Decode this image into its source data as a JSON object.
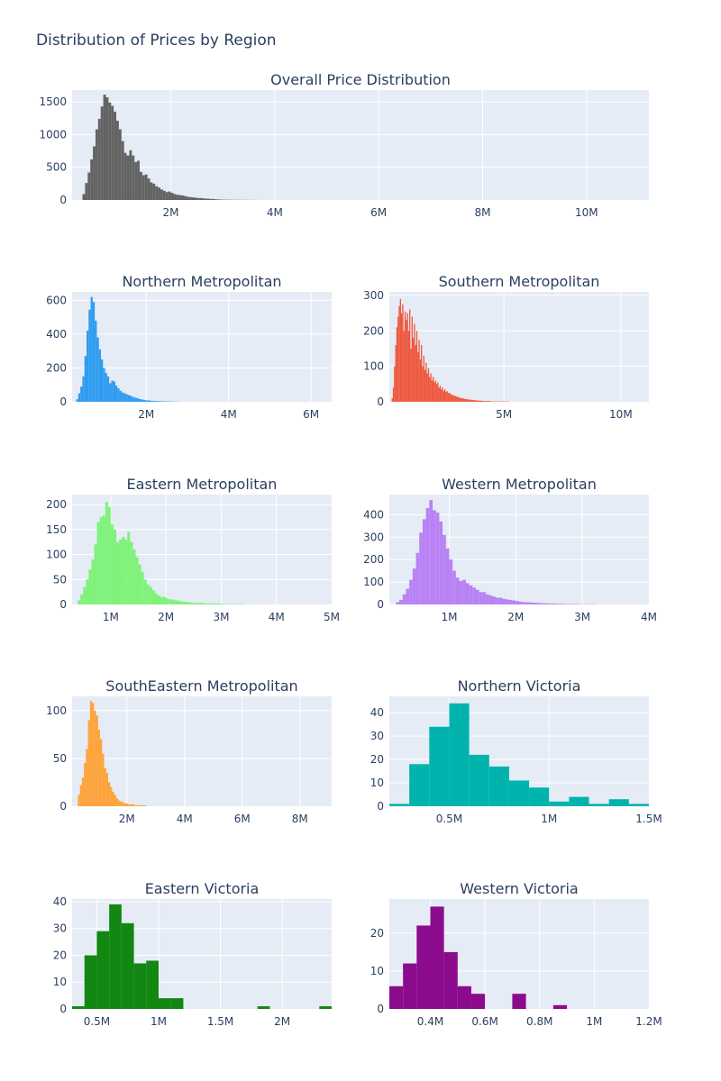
{
  "title": "Distribution of Prices by Region",
  "chart_data": [
    {
      "type": "histogram",
      "title": "Overall Price Distribution",
      "color": "#636363",
      "xlim": [
        0.1,
        11.2
      ],
      "ylim": [
        0,
        1680
      ],
      "x_ticks": [
        {
          "v": 2,
          "label": "2M"
        },
        {
          "v": 4,
          "label": "4M"
        },
        {
          "v": 6,
          "label": "6M"
        },
        {
          "v": 8,
          "label": "8M"
        },
        {
          "v": 10,
          "label": "10M"
        }
      ],
      "y_ticks": [
        {
          "v": 0,
          "label": "0"
        },
        {
          "v": 500,
          "label": "500"
        },
        {
          "v": 1000,
          "label": "1000"
        },
        {
          "v": 1500,
          "label": "1500"
        }
      ],
      "bin_start": 0.3,
      "bin_width": 0.05,
      "counts": [
        90,
        260,
        420,
        620,
        820,
        1080,
        1240,
        1430,
        1610,
        1570,
        1490,
        1440,
        1350,
        1210,
        1080,
        900,
        720,
        680,
        760,
        680,
        580,
        600,
        430,
        380,
        390,
        330,
        270,
        250,
        210,
        190,
        160,
        140,
        120,
        130,
        110,
        90,
        80,
        75,
        70,
        60,
        50,
        45,
        40,
        35,
        30,
        30,
        25,
        22,
        20,
        15,
        15,
        10,
        8,
        6,
        5,
        4,
        4,
        3,
        3,
        2,
        2,
        2,
        2,
        1,
        1,
        1,
        1,
        1
      ]
    },
    {
      "type": "histogram",
      "title": "Northern Metropolitan",
      "color": "#2e9cf0",
      "xlim": [
        0.2,
        6.5
      ],
      "ylim": [
        0,
        650
      ],
      "x_ticks": [
        {
          "v": 2,
          "label": "2M"
        },
        {
          "v": 4,
          "label": "4M"
        },
        {
          "v": 6,
          "label": "6M"
        }
      ],
      "y_ticks": [
        {
          "v": 0,
          "label": "0"
        },
        {
          "v": 200,
          "label": "200"
        },
        {
          "v": 400,
          "label": "400"
        },
        {
          "v": 600,
          "label": "600"
        }
      ],
      "bin_start": 0.3,
      "bin_width": 0.05,
      "counts": [
        15,
        50,
        90,
        150,
        270,
        420,
        545,
        620,
        590,
        480,
        380,
        310,
        250,
        200,
        170,
        150,
        110,
        125,
        120,
        95,
        80,
        65,
        55,
        50,
        45,
        40,
        35,
        30,
        25,
        22,
        18,
        15,
        12,
        10,
        8,
        8,
        6,
        5,
        5,
        4,
        3,
        3,
        3,
        2,
        2,
        2,
        2,
        1,
        1,
        1
      ]
    },
    {
      "type": "histogram",
      "title": "Southern Metropolitan",
      "color": "#ef553b",
      "xlim": [
        0.1,
        11.2
      ],
      "ylim": [
        0,
        310
      ],
      "x_ticks": [
        {
          "v": 5,
          "label": "5M"
        },
        {
          "v": 10,
          "label": "10M"
        }
      ],
      "y_ticks": [
        {
          "v": 0,
          "label": "0"
        },
        {
          "v": 100,
          "label": "100"
        },
        {
          "v": 200,
          "label": "200"
        },
        {
          "v": 300,
          "label": "300"
        }
      ],
      "bin_start": 0.2,
      "bin_width": 0.05,
      "counts": [
        10,
        40,
        100,
        160,
        210,
        240,
        270,
        290,
        250,
        275,
        200,
        255,
        230,
        250,
        200,
        260,
        150,
        240,
        180,
        220,
        160,
        200,
        140,
        175,
        120,
        160,
        100,
        130,
        90,
        110,
        80,
        95,
        70,
        80,
        60,
        70,
        55,
        60,
        50,
        55,
        40,
        45,
        35,
        40,
        30,
        35,
        28,
        30,
        25,
        25,
        22,
        20,
        18,
        18,
        16,
        15,
        14,
        12,
        12,
        10,
        10,
        9,
        8,
        8,
        7,
        7,
        6,
        6,
        5,
        5,
        5,
        4,
        4,
        4,
        3,
        3,
        3,
        3,
        2,
        2,
        2,
        2,
        2,
        2,
        2,
        1,
        1,
        1,
        1,
        1,
        1,
        1,
        1,
        1,
        1,
        1,
        1,
        1,
        1,
        1
      ]
    },
    {
      "type": "histogram",
      "title": "Eastern Metropolitan",
      "color": "#7ff27a",
      "xlim": [
        0.3,
        5.0
      ],
      "ylim": [
        0,
        220
      ],
      "x_ticks": [
        {
          "v": 1,
          "label": "1M"
        },
        {
          "v": 2,
          "label": "2M"
        },
        {
          "v": 3,
          "label": "3M"
        },
        {
          "v": 4,
          "label": "4M"
        },
        {
          "v": 5,
          "label": "5M"
        }
      ],
      "y_ticks": [
        {
          "v": 0,
          "label": "0"
        },
        {
          "v": 50,
          "label": "50"
        },
        {
          "v": 100,
          "label": "100"
        },
        {
          "v": 150,
          "label": "150"
        },
        {
          "v": 200,
          "label": "200"
        }
      ],
      "bin_start": 0.4,
      "bin_width": 0.05,
      "counts": [
        8,
        20,
        35,
        50,
        70,
        90,
        120,
        165,
        175,
        178,
        205,
        195,
        160,
        150,
        125,
        130,
        135,
        130,
        145,
        125,
        110,
        95,
        80,
        65,
        50,
        40,
        35,
        28,
        22,
        18,
        15,
        15,
        12,
        10,
        10,
        8,
        8,
        6,
        5,
        5,
        4,
        4,
        3,
        3,
        3,
        3,
        2,
        2,
        2,
        2,
        2,
        2,
        1,
        1,
        1,
        1,
        1,
        1,
        1,
        1
      ]
    },
    {
      "type": "histogram",
      "title": "Western Metropolitan",
      "color": "#b982f4",
      "xlim": [
        0.1,
        4.0
      ],
      "ylim": [
        0,
        490
      ],
      "x_ticks": [
        {
          "v": 1,
          "label": "1M"
        },
        {
          "v": 2,
          "label": "2M"
        },
        {
          "v": 3,
          "label": "3M"
        },
        {
          "v": 4,
          "label": "4M"
        }
      ],
      "y_ticks": [
        {
          "v": 0,
          "label": "0"
        },
        {
          "v": 100,
          "label": "100"
        },
        {
          "v": 200,
          "label": "200"
        },
        {
          "v": 300,
          "label": "300"
        },
        {
          "v": 400,
          "label": "400"
        }
      ],
      "bin_start": 0.2,
      "bin_width": 0.05,
      "counts": [
        10,
        20,
        45,
        70,
        110,
        160,
        230,
        320,
        380,
        430,
        465,
        420,
        410,
        370,
        310,
        250,
        200,
        150,
        120,
        105,
        110,
        95,
        85,
        75,
        65,
        55,
        55,
        45,
        40,
        35,
        30,
        30,
        25,
        22,
        20,
        18,
        15,
        12,
        10,
        10,
        9,
        8,
        7,
        6,
        5,
        5,
        4,
        4,
        3,
        3,
        3,
        2,
        2,
        2,
        2,
        1,
        1,
        1,
        1,
        1
      ]
    },
    {
      "type": "histogram",
      "title": "SouthEastern Metropolitan",
      "color": "#fea33a",
      "xlim": [
        0.1,
        9.1
      ],
      "ylim": [
        0,
        115
      ],
      "x_ticks": [
        {
          "v": 2,
          "label": "2M"
        },
        {
          "v": 4,
          "label": "4M"
        },
        {
          "v": 6,
          "label": "6M"
        },
        {
          "v": 8,
          "label": "8M"
        }
      ],
      "y_ticks": [
        {
          "v": 0,
          "label": "0"
        },
        {
          "v": 50,
          "label": "50"
        },
        {
          "v": 100,
          "label": "100"
        }
      ],
      "bin_start": 0.3,
      "bin_width": 0.07,
      "counts": [
        12,
        22,
        30,
        45,
        60,
        90,
        110,
        108,
        100,
        95,
        80,
        70,
        55,
        40,
        35,
        25,
        20,
        15,
        12,
        8,
        6,
        5,
        4,
        3,
        3,
        2,
        2,
        2,
        1,
        1,
        1,
        1,
        1,
        1
      ]
    },
    {
      "type": "histogram",
      "title": "Northern Victoria",
      "color": "#00b4ad",
      "xlim": [
        0.2,
        1.5
      ],
      "ylim": [
        0,
        47
      ],
      "x_ticks": [
        {
          "v": 0.5,
          "label": "0.5M"
        },
        {
          "v": 1,
          "label": "1M"
        },
        {
          "v": 1.5,
          "label": "1.5M"
        }
      ],
      "y_ticks": [
        {
          "v": 0,
          "label": "0"
        },
        {
          "v": 10,
          "label": "10"
        },
        {
          "v": 20,
          "label": "20"
        },
        {
          "v": 30,
          "label": "30"
        },
        {
          "v": 40,
          "label": "40"
        }
      ],
      "bin_start": 0.2,
      "bin_width": 0.1,
      "counts": [
        1,
        18,
        34,
        44,
        22,
        17,
        11,
        8,
        2,
        4,
        1,
        3,
        1
      ]
    },
    {
      "type": "histogram",
      "title": "Eastern Victoria",
      "color": "#128712",
      "xlim": [
        0.3,
        2.4
      ],
      "ylim": [
        0,
        41
      ],
      "x_ticks": [
        {
          "v": 0.5,
          "label": "0.5M"
        },
        {
          "v": 1,
          "label": "1M"
        },
        {
          "v": 1.5,
          "label": "1.5M"
        },
        {
          "v": 2,
          "label": "2M"
        }
      ],
      "y_ticks": [
        {
          "v": 0,
          "label": "0"
        },
        {
          "v": 10,
          "label": "10"
        },
        {
          "v": 20,
          "label": "20"
        },
        {
          "v": 30,
          "label": "30"
        },
        {
          "v": 40,
          "label": "40"
        }
      ],
      "bin_start": 0.3,
      "bin_width": 0.1,
      "counts": [
        1,
        20,
        29,
        39,
        32,
        17,
        18,
        4,
        4,
        0,
        0,
        0,
        0,
        0,
        0,
        1,
        0,
        0,
        0,
        0,
        1
      ]
    },
    {
      "type": "histogram",
      "title": "Western Victoria",
      "color": "#8c0b8c",
      "xlim": [
        0.25,
        1.2
      ],
      "ylim": [
        0,
        29
      ],
      "x_ticks": [
        {
          "v": 0.4,
          "label": "0.4M"
        },
        {
          "v": 0.6,
          "label": "0.6M"
        },
        {
          "v": 0.8,
          "label": "0.8M"
        },
        {
          "v": 1,
          "label": "1M"
        },
        {
          "v": 1.2,
          "label": "1.2M"
        }
      ],
      "y_ticks": [
        {
          "v": 0,
          "label": "0"
        },
        {
          "v": 10,
          "label": "10"
        },
        {
          "v": 20,
          "label": "20"
        }
      ],
      "bin_start": 0.25,
      "bin_width": 0.05,
      "counts": [
        6,
        12,
        22,
        27,
        15,
        6,
        4,
        0,
        0,
        4,
        0,
        0,
        1,
        0,
        0,
        0,
        0,
        0,
        0
      ]
    }
  ]
}
